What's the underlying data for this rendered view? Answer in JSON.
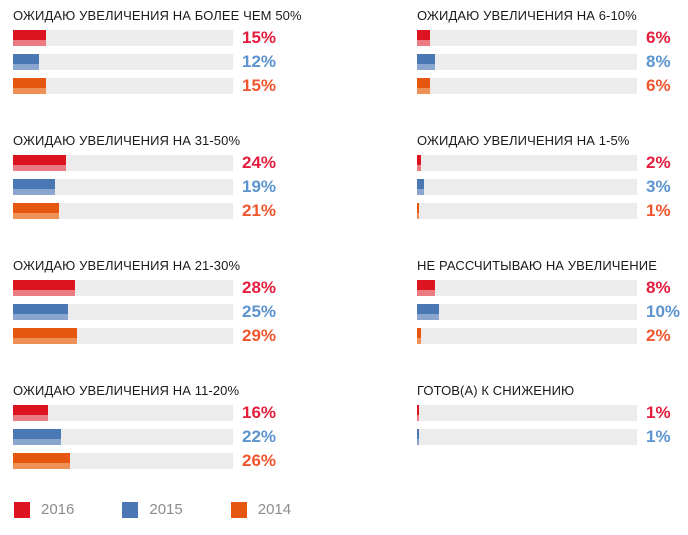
{
  "colors": {
    "red": "#dc1420",
    "red_light": "#ea7b82",
    "red_label": "#e51d3d",
    "blue": "#4a78b4",
    "blue_light": "#8aa6ce",
    "blue_label": "#5b94ce",
    "orange": "#e5570e",
    "orange_light": "#ef9156",
    "orange_label": "#f0562e",
    "track": "#ececec",
    "title_text": "#1a1a1a",
    "legend_text": "#8c8c8c"
  },
  "legend": {
    "items": [
      {
        "label": "2016",
        "color_key": "red"
      },
      {
        "label": "2015",
        "color_key": "blue"
      },
      {
        "label": "2014",
        "color_key": "orange"
      }
    ]
  },
  "chart_data": {
    "type": "bar",
    "orientation": "horizontal",
    "unit": "%",
    "xlim": [
      0,
      100
    ],
    "grid": false,
    "legend_position": "bottom",
    "series_years": [
      "2016",
      "2015",
      "2014"
    ],
    "columns": [
      {
        "groups": [
          {
            "title": "ОЖИДАЮ УВЕЛИЧЕНИЯ НА БОЛЕЕ ЧЕМ 50%",
            "bars": [
              {
                "year": "2016",
                "value": 15,
                "label": "15%"
              },
              {
                "year": "2015",
                "value": 12,
                "label": "12%"
              },
              {
                "year": "2014",
                "value": 15,
                "label": "15%"
              }
            ]
          },
          {
            "title": "ОЖИДАЮ УВЕЛИЧЕНИЯ НА 31-50%",
            "bars": [
              {
                "year": "2016",
                "value": 24,
                "label": "24%"
              },
              {
                "year": "2015",
                "value": 19,
                "label": "19%"
              },
              {
                "year": "2014",
                "value": 21,
                "label": "21%"
              }
            ]
          },
          {
            "title": "ОЖИДАЮ УВЕЛИЧЕНИЯ НА 21-30%",
            "bars": [
              {
                "year": "2016",
                "value": 28,
                "label": "28%"
              },
              {
                "year": "2015",
                "value": 25,
                "label": "25%"
              },
              {
                "year": "2014",
                "value": 29,
                "label": "29%"
              }
            ]
          },
          {
            "title": "ОЖИДАЮ УВЕЛИЧЕНИЯ НА 11-20%",
            "bars": [
              {
                "year": "2016",
                "value": 16,
                "label": "16%"
              },
              {
                "year": "2015",
                "value": 22,
                "label": "22%"
              },
              {
                "year": "2014",
                "value": 26,
                "label": "26%"
              }
            ]
          }
        ]
      },
      {
        "groups": [
          {
            "title": "ОЖИДАЮ УВЕЛИЧЕНИЯ НА 6-10%",
            "bars": [
              {
                "year": "2016",
                "value": 6,
                "label": "6%"
              },
              {
                "year": "2015",
                "value": 8,
                "label": "8%"
              },
              {
                "year": "2014",
                "value": 6,
                "label": "6%"
              }
            ]
          },
          {
            "title": "ОЖИДАЮ УВЕЛИЧЕНИЯ НА 1-5%",
            "bars": [
              {
                "year": "2016",
                "value": 2,
                "label": "2%"
              },
              {
                "year": "2015",
                "value": 3,
                "label": "3%"
              },
              {
                "year": "2014",
                "value": 1,
                "label": "1%"
              }
            ]
          },
          {
            "title": "НЕ РАССЧИТЫВАЮ НА УВЕЛИЧЕНИЕ",
            "bars": [
              {
                "year": "2016",
                "value": 8,
                "label": "8%"
              },
              {
                "year": "2015",
                "value": 10,
                "label": "10%"
              },
              {
                "year": "2014",
                "value": 2,
                "label": "2%"
              }
            ]
          },
          {
            "title": "ГОТОВ(А) К СНИЖЕНИЮ",
            "bars": [
              {
                "year": "2016",
                "value": 1,
                "label": "1%"
              },
              {
                "year": "2015",
                "value": 1,
                "label": "1%"
              }
            ]
          }
        ]
      }
    ]
  }
}
